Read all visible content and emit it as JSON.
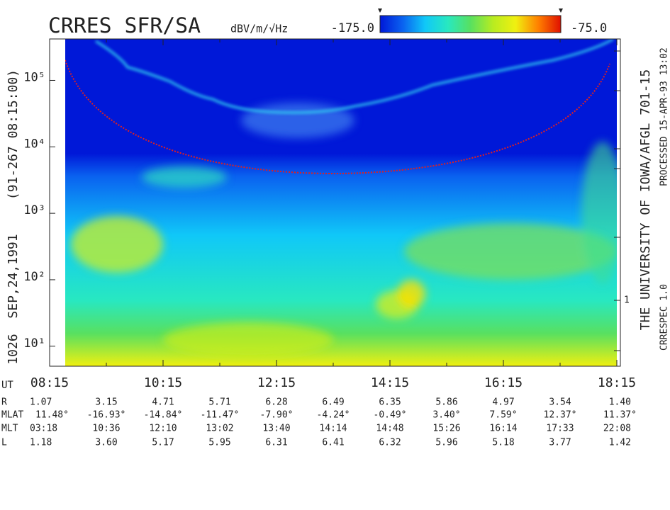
{
  "chart_data": {
    "type": "spectrogram",
    "title": "CRRES SFR/SA",
    "colorbar_label": "dBV/m/√Hz",
    "clim": [
      -175,
      -75
    ],
    "cticks": [
      {
        "value": -175,
        "label": "-175.0"
      },
      {
        "value": -75,
        "label": "-75.0"
      }
    ],
    "colormap": [
      "#0018d8",
      "#0a62f0",
      "#10c8f8",
      "#28e8c0",
      "#58e060",
      "#b8ec20",
      "#f0f010",
      "#ff8000",
      "#e01000"
    ],
    "ylog": true,
    "ylim": [
      5,
      420000
    ],
    "yticks": [
      {
        "value": 10,
        "label": "10¹"
      },
      {
        "value": 100,
        "label": "10²"
      },
      {
        "value": 1000,
        "label": "10³"
      },
      {
        "value": 10000,
        "label": "10⁴"
      },
      {
        "value": 100000,
        "label": "10⁵"
      }
    ],
    "xlim": [
      8.25,
      18.25
    ],
    "xticks": [
      {
        "value": 8.25,
        "label": "08:15"
      },
      {
        "value": 10.25,
        "label": "10:15"
      },
      {
        "value": 12.25,
        "label": "12:15"
      },
      {
        "value": 14.25,
        "label": "14:15"
      },
      {
        "value": 16.25,
        "label": "16:15"
      },
      {
        "value": 18.25,
        "label": "18:15"
      }
    ],
    "xminor": [
      9.25,
      11.25,
      13.25,
      15.25,
      17.25
    ],
    "x_label": "UT",
    "left_annotations": [
      "1026",
      "SEP,24,1991",
      "(91-267 08:15:00)"
    ],
    "right_annotations": [
      "THE UNIVERSITY OF IOWA/AFGL 701-15",
      "PROCESSED 15-APR-93  13:02",
      "CRRESPEC 1.0"
    ],
    "right_tick_label": "1",
    "ephemeris": [
      {
        "name": "R",
        "values": [
          "1.07",
          "3.15",
          "4.71",
          "5.71",
          "6.28",
          "6.49",
          "6.35",
          "5.86",
          "4.97",
          "3.54",
          "1.40"
        ]
      },
      {
        "name": "MLAT",
        "values": [
          "11.48°",
          "-16.93°",
          "-14.84°",
          "-11.47°",
          "-7.90°",
          "-4.24°",
          "-0.49°",
          "3.40°",
          "7.59°",
          "12.37°",
          "11.37°"
        ]
      },
      {
        "name": "MLT",
        "values": [
          "03:18",
          "10:36",
          "12:10",
          "13:02",
          "13:40",
          "14:14",
          "14:48",
          "15:26",
          "16:14",
          "17:33",
          "22:08"
        ]
      },
      {
        "name": "L",
        "values": [
          "1.18",
          "3.60",
          "5.17",
          "5.95",
          "6.31",
          "6.41",
          "6.32",
          "5.96",
          "5.18",
          "3.77",
          "1.42"
        ]
      }
    ]
  }
}
